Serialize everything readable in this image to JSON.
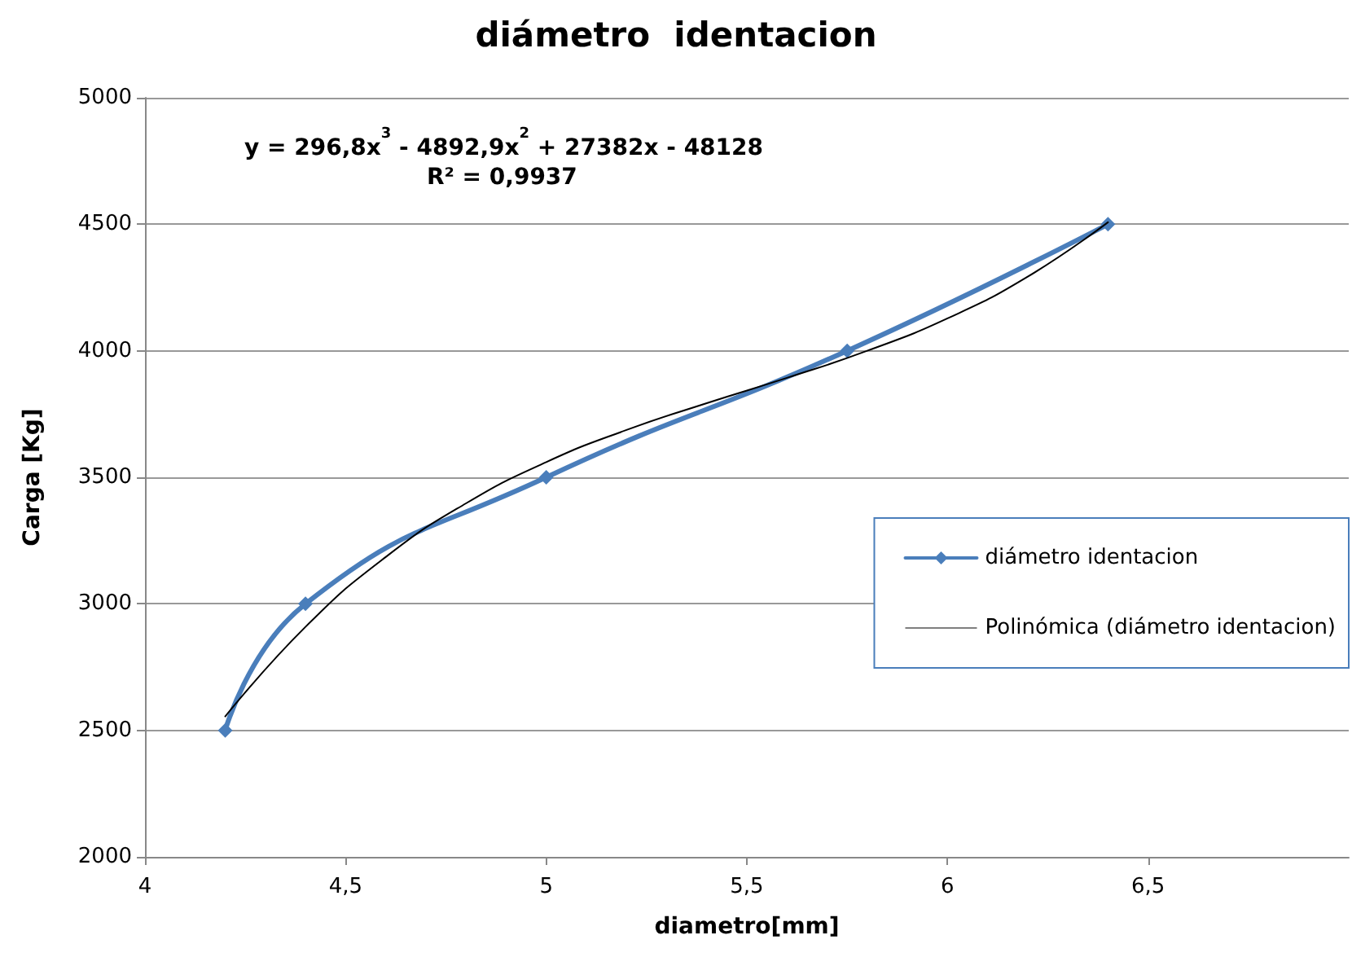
{
  "chart_data": {
    "type": "line",
    "title": "diámetro  identacion",
    "xlabel": "diametro[mm]",
    "ylabel": "Carga [Kg]",
    "annotations": [
      "y = 296,8x$^{3}$ - 4892,9x$^{2}$ + 27382x - 48128",
      "R² = 0,9937"
    ],
    "x": [
      4.2,
      4.4,
      5.0,
      5.75,
      6.4
    ],
    "series": [
      {
        "name": "diámetro identacion",
        "color": "#4a7ebb",
        "values": [
          2500,
          3000,
          3500,
          4000,
          4500
        ],
        "marker": "diamond"
      },
      {
        "name": "Polinómica (diámetro identacion)",
        "color": "#000000",
        "marker": "none",
        "x": [
          4.2,
          4.4,
          4.6,
          4.8,
          5.0,
          5.2,
          5.4,
          5.6,
          5.8,
          6.0,
          6.2,
          6.4
        ],
        "values": [
          2555,
          2909,
          3185,
          3397,
          3560,
          3687,
          3793,
          3893,
          4000,
          4128,
          4293,
          4508
        ]
      }
    ],
    "xlim": [
      4,
      7
    ],
    "xticks": [
      4,
      {
        "value": 4.5,
        "label": "4,5"
      },
      5,
      {
        "value": 5.5,
        "label": "5,5"
      },
      6,
      {
        "value": 6.5,
        "label": "6,5"
      }
    ],
    "ylim": [
      2000,
      5000
    ],
    "yticks": [
      2000,
      2500,
      3000,
      3500,
      4000,
      4500,
      5000
    ],
    "grid": "y",
    "legend": "right"
  }
}
